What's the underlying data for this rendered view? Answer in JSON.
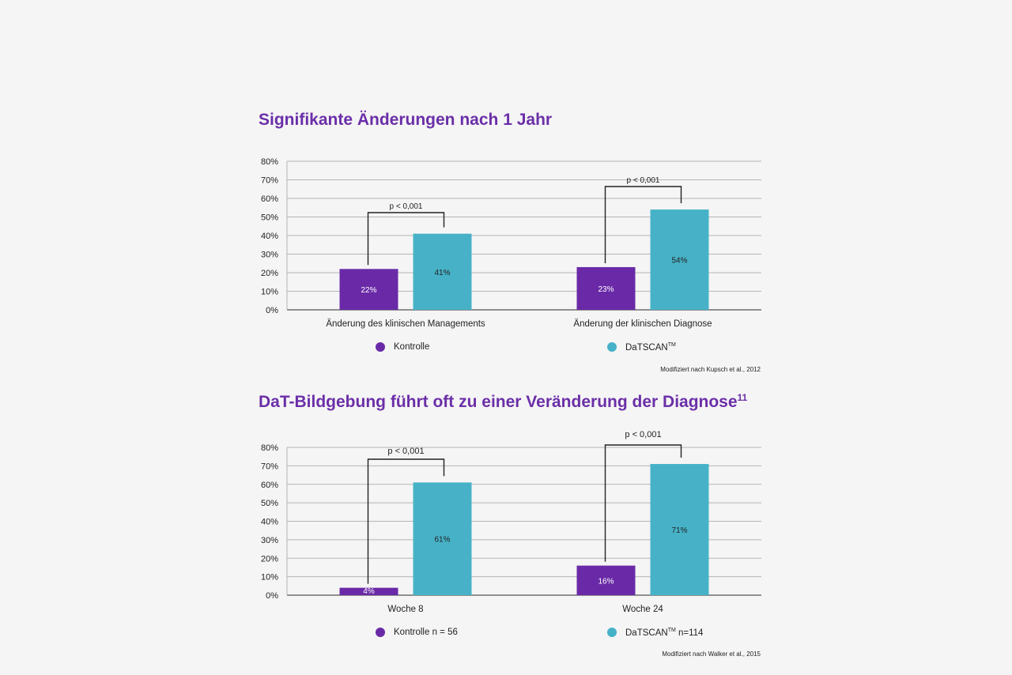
{
  "colors": {
    "kontrolle": "#6a2aa7",
    "datscan": "#47b2c7",
    "title": "#6b2fa8",
    "grid": "#b5b5b5",
    "axis": "#555555"
  },
  "chart_data": [
    {
      "type": "bar",
      "title": "Signifikante Änderungen nach 1 Jahr",
      "title_sup": "",
      "categories": [
        "Änderung des klinischen Managements",
        "Änderung der klinischen Diagnose"
      ],
      "series": [
        {
          "name": "Kontrolle",
          "values": [
            22,
            23
          ],
          "labels": [
            "22%",
            "23%"
          ]
        },
        {
          "name": "DaTSCAN",
          "name_sup": "TM",
          "values": [
            41,
            54
          ],
          "labels": [
            "41%",
            "54%"
          ]
        }
      ],
      "ylim": [
        0,
        80
      ],
      "yticks": [
        "0%",
        "10%",
        "20%",
        "30%",
        "40%",
        "50%",
        "60%",
        "70%",
        "80%"
      ],
      "annotations": [
        "p < 0,001",
        "p < 0,001"
      ],
      "grid": true,
      "legend": [
        "Kontrolle",
        "DaTSCAN"
      ],
      "source": "Modifiziert nach Kupsch et al., 2012"
    },
    {
      "type": "bar",
      "title": "DaT-Bildgebung führt oft zu einer Veränderung der Diagnose",
      "title_sup": "11",
      "categories": [
        "Woche 8",
        "Woche 24"
      ],
      "series": [
        {
          "name": "Kontrolle n = 56",
          "values": [
            4,
            16
          ],
          "labels": [
            "4%",
            "16%"
          ]
        },
        {
          "name": "DaTSCAN",
          "name_sup": "TM",
          "name_suffix": " n=114",
          "values": [
            61,
            71
          ],
          "labels": [
            "61%",
            "71%"
          ]
        }
      ],
      "ylim": [
        0,
        80
      ],
      "yticks": [
        "0%",
        "10%",
        "20%",
        "30%",
        "40%",
        "50%",
        "60%",
        "70%",
        "80%"
      ],
      "annotations": [
        "p < 0,001",
        "p < 0,001"
      ],
      "grid": true,
      "legend": [
        "Kontrolle n = 56",
        "DaTSCAN n=114"
      ],
      "source": "Modifiziert nach Walker et al., 2015"
    }
  ]
}
